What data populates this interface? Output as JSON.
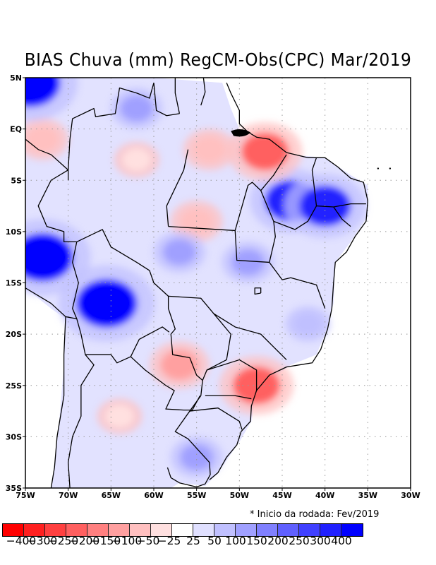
{
  "title": "BIAS Chuva (mm) RegCM-Obs(CPC) Mar/2019",
  "note": "* Inicio da rodada: Fev/2019",
  "map": {
    "region": "Brazil / South America",
    "variable": "Precipitation bias (mm)",
    "extent": {
      "lon_min": -75,
      "lon_max": -30,
      "lat_min": -35,
      "lat_max": 5
    },
    "lon_ticks": [
      "75W",
      "70W",
      "65W",
      "60W",
      "55W",
      "50W",
      "45W",
      "40W",
      "35W",
      "30W"
    ],
    "lat_ticks": [
      "5N",
      "EQ",
      "5S",
      "10S",
      "15S",
      "20S",
      "25S",
      "30S",
      "35S"
    ],
    "lon_values": [
      -75,
      -70,
      -65,
      -60,
      -55,
      -50,
      -45,
      -40,
      -35,
      -30
    ],
    "lat_values": [
      5,
      0,
      -5,
      -10,
      -15,
      -20,
      -25,
      -30,
      -35
    ],
    "gridlines": "dotted"
  },
  "colorbar": {
    "labels": [
      "-400",
      "-300",
      "-250",
      "-200",
      "-150",
      "-100",
      "-50",
      "-25",
      "25",
      "50",
      "100",
      "150",
      "200",
      "250",
      "300",
      "400"
    ],
    "colors": [
      "#ff0000",
      "#ff2020",
      "#ff4040",
      "#ff6060",
      "#ff8080",
      "#ffa0a0",
      "#ffc0c0",
      "#ffe0e0",
      "#ffffff",
      "#e0e0ff",
      "#c0c0ff",
      "#a0a0ff",
      "#8080ff",
      "#6060ff",
      "#4040ff",
      "#2020ff",
      "#0000ff"
    ]
  },
  "chart_data": {
    "type": "heatmap",
    "title": "BIAS Chuva (mm) RegCM-Obs(CPC) Mar/2019",
    "xlabel": "Longitude",
    "ylabel": "Latitude",
    "xlim": [
      -75,
      -30
    ],
    "ylim": [
      -35,
      5
    ],
    "blobs": [
      {
        "region": "Western Amazon / Peru-Bolivia border",
        "lon": -73,
        "lat": -12.5,
        "bias": 400
      },
      {
        "region": "Bolivia (Beni)",
        "lon": -65.5,
        "lat": -17,
        "bias": 400
      },
      {
        "region": "Maranhão / Piauí",
        "lon": -44,
        "lat": -7,
        "bias": 300
      },
      {
        "region": "Ceará / Piauí",
        "lon": -40,
        "lat": -7.5,
        "bias": 300
      },
      {
        "region": "Pará coast (NE Pará)",
        "lon": -47,
        "lat": -2.2,
        "bias": -250
      },
      {
        "region": "Paraguay / Mato Grosso do Sul",
        "lon": -57,
        "lat": -23,
        "bias": -150
      },
      {
        "region": "Amapá / Northern Pará",
        "lon": -53.5,
        "lat": -2,
        "bias": -100
      },
      {
        "region": "Colombia / Ecuador",
        "lon": -73,
        "lat": -1,
        "bias": -100
      },
      {
        "region": "Santa Catarina / Paraná coast",
        "lon": -48,
        "lat": -25,
        "bias": -250
      },
      {
        "region": "Central Pará",
        "lon": -55,
        "lat": -9,
        "bias": -100
      },
      {
        "region": "Northern Argentina",
        "lon": -64,
        "lat": -28,
        "bias": -50
      },
      {
        "region": "Western Amazonas",
        "lon": -62,
        "lat": -3,
        "bias": -50
      },
      {
        "region": "Rio Grande do Sul / Uruguay",
        "lon": -55,
        "lat": -32,
        "bias": 100
      },
      {
        "region": "Northern Amazon",
        "lon": -62,
        "lat": 2,
        "bias": 100
      },
      {
        "region": "Mato Grosso",
        "lon": -57,
        "lat": -12,
        "bias": 100
      },
      {
        "region": "Goiás / Tocantins",
        "lon": -49,
        "lat": -13,
        "bias": 100
      },
      {
        "region": "Bahia interior",
        "lon": -42,
        "lat": -19,
        "bias": 50
      },
      {
        "region": "Far NW corner",
        "lon": -74.5,
        "lat": 4.5,
        "bias": 400
      }
    ]
  }
}
